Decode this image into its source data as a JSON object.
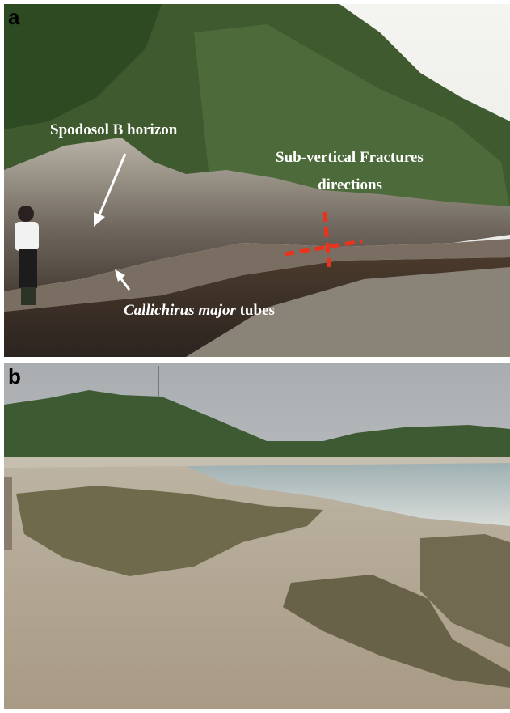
{
  "panels": [
    {
      "label": "a",
      "annotations": {
        "horizon": "Spodosol B horizon",
        "fractures": [
          "Sub-vertical Fractures",
          "directions"
        ],
        "tubes": {
          "italic": "Callichirus major",
          "text": "tubes"
        }
      }
    },
    {
      "label": "b"
    }
  ]
}
